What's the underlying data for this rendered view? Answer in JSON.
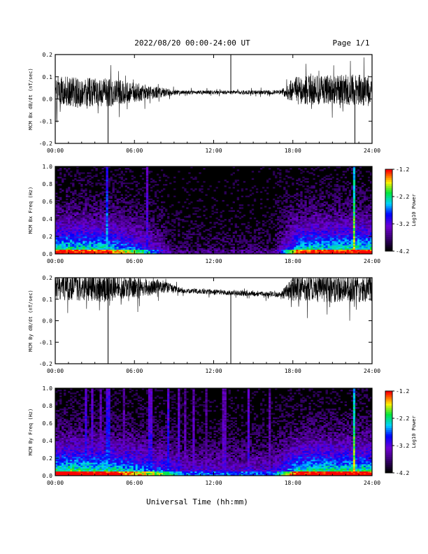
{
  "header": {
    "date_range": "2022/08/20  00:00-24:00 UT",
    "page": "Page 1/1"
  },
  "xaxis_label": "Universal Time (hh:mm)",
  "colors": {
    "trace": "#000000",
    "background": "#ffffff",
    "spectrogram_floor": "#000000"
  },
  "chart_data": [
    {
      "type": "line",
      "ylabel": "MCM Bx dB/dt (nT/sec)",
      "xlim": [
        0,
        24
      ],
      "ylim": [
        -0.2,
        0.2
      ],
      "yticks": [
        "-0.2",
        "-0.1",
        "0.0",
        "0.1",
        "0.2"
      ],
      "xticks": [
        "00:00",
        "06:00",
        "12:00",
        "18:00",
        "24:00"
      ],
      "profile": [
        [
          0,
          0.03,
          0.09
        ],
        [
          4,
          0.03,
          0.08
        ],
        [
          8,
          0.03,
          0.03
        ],
        [
          9.5,
          0.03,
          0.01
        ],
        [
          17,
          0.03,
          0.012
        ],
        [
          18.2,
          0.04,
          0.08
        ],
        [
          24,
          0.04,
          0.09
        ]
      ],
      "spikes": [
        [
          4,
          -0.2
        ],
        [
          22.7,
          -0.2
        ],
        [
          13.3,
          0.2
        ]
      ]
    },
    {
      "type": "heatmap",
      "ylabel": "MCM Bx Freq (Hz)",
      "xlim": [
        0,
        24
      ],
      "ylim": [
        0,
        1
      ],
      "yticks": [
        "0.0",
        "0.2",
        "0.4",
        "0.6",
        "0.8",
        "1.0"
      ],
      "xticks": [
        "00:00",
        "06:00",
        "12:00",
        "18:00",
        "24:00"
      ],
      "colorbar": {
        "label": "Log10 Power",
        "ticks": [
          "-1.2",
          "-2.2",
          "-3.2",
          "-4.2"
        ],
        "range": [
          -4.2,
          -1.2
        ]
      },
      "activity": [
        [
          0,
          0.85
        ],
        [
          4,
          0.8
        ],
        [
          7,
          0.5
        ],
        [
          9,
          0.15
        ],
        [
          16.5,
          0.15
        ],
        [
          18.5,
          0.8
        ],
        [
          24,
          0.85
        ]
      ],
      "bright_columns": [
        [
          3.9,
          0.7
        ],
        [
          7.0,
          0.45
        ],
        [
          22.7,
          1.0
        ]
      ]
    },
    {
      "type": "line",
      "ylabel": "MCM By dB/dt (nT/sec)",
      "xlim": [
        0,
        24
      ],
      "ylim": [
        -0.2,
        0.2
      ],
      "yticks": [
        "-0.2",
        "-0.1",
        "0.0",
        "0.1",
        "0.2"
      ],
      "xticks": [
        "00:00",
        "06:00",
        "12:00",
        "18:00",
        "24:00"
      ],
      "profile": [
        [
          0,
          0.16,
          0.08
        ],
        [
          4,
          0.15,
          0.08
        ],
        [
          8,
          0.16,
          0.04
        ],
        [
          9.5,
          0.14,
          0.015
        ],
        [
          17,
          0.12,
          0.015
        ],
        [
          18.2,
          0.15,
          0.08
        ],
        [
          24,
          0.15,
          0.08
        ]
      ],
      "spikes": [
        [
          4,
          -0.2
        ],
        [
          13.3,
          -0.2
        ]
      ]
    },
    {
      "type": "heatmap",
      "ylabel": "MCM By Freq (Hz)",
      "xlim": [
        0,
        24
      ],
      "ylim": [
        0,
        1
      ],
      "yticks": [
        "0.0",
        "0.2",
        "0.4",
        "0.6",
        "0.8",
        "1.0"
      ],
      "xticks": [
        "00:00",
        "06:00",
        "12:00",
        "18:00",
        "24:00"
      ],
      "colorbar": {
        "label": "Log10 Power",
        "ticks": [
          "-1.2",
          "-2.2",
          "-3.2",
          "-4.2"
        ],
        "range": [
          -4.2,
          -1.2
        ]
      },
      "activity": [
        [
          0,
          0.9
        ],
        [
          4,
          0.85
        ],
        [
          8,
          0.6
        ],
        [
          10,
          0.4
        ],
        [
          16.5,
          0.4
        ],
        [
          18.5,
          0.85
        ],
        [
          24,
          0.85
        ]
      ],
      "bright_columns": [
        [
          2.3,
          0.55
        ],
        [
          2.8,
          0.5
        ],
        [
          3.4,
          0.4
        ],
        [
          4.0,
          0.6
        ],
        [
          5.2,
          0.35
        ],
        [
          7.2,
          0.5
        ],
        [
          8.6,
          0.55
        ],
        [
          9.3,
          0.45
        ],
        [
          9.9,
          0.35
        ],
        [
          10.5,
          0.4
        ],
        [
          11.4,
          0.3
        ],
        [
          12.8,
          0.4
        ],
        [
          14.6,
          0.45
        ],
        [
          16.2,
          0.35
        ],
        [
          22.7,
          1.0
        ]
      ]
    }
  ]
}
